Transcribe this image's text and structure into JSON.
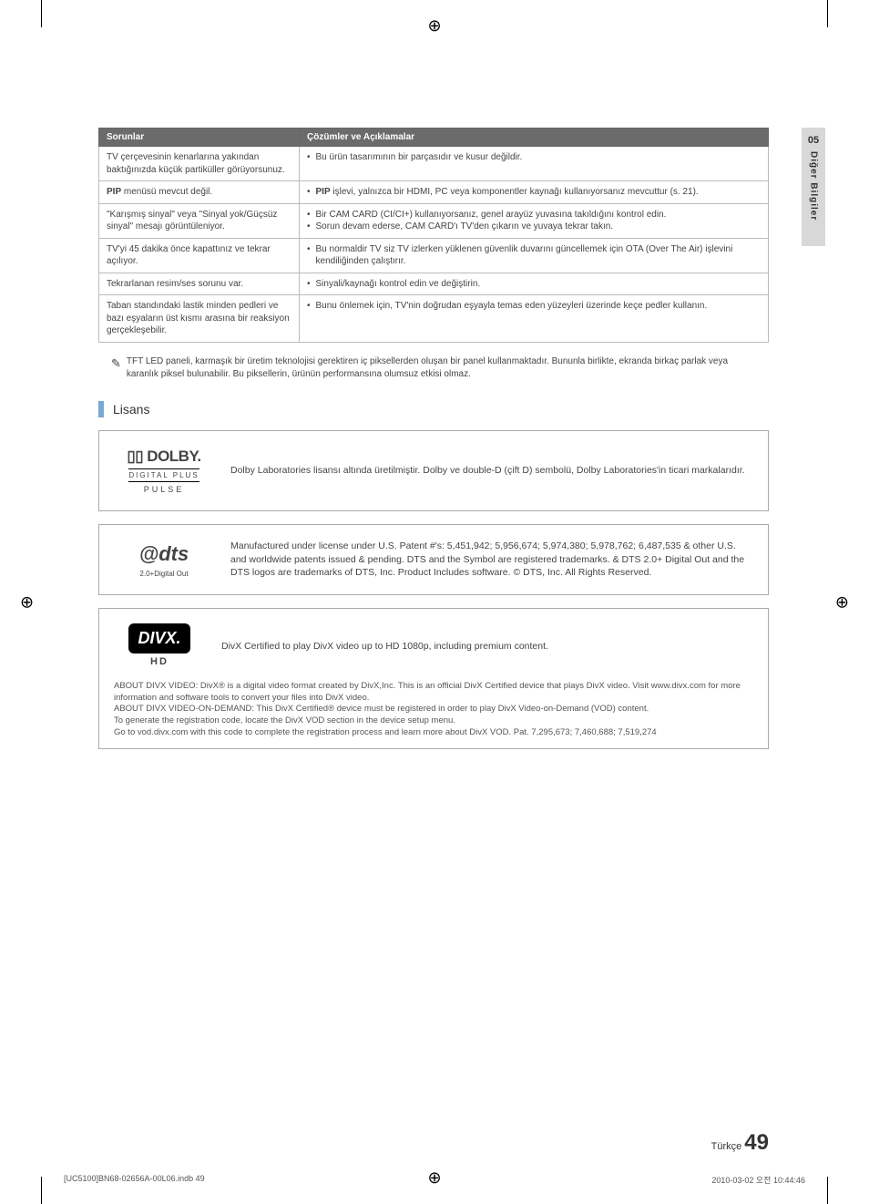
{
  "sidebar": {
    "section_number": "05",
    "section_title": "Diğer Bilgiler"
  },
  "table": {
    "header_problem": "Sorunlar",
    "header_solution": "Çözümler ve Açıklamalar",
    "rows": [
      {
        "problem": "TV çerçevesinin kenarlarına yakından baktığınızda küçük partiküller görüyorsunuz.",
        "solutions": [
          "Bu ürün tasarımının bir parçasıdır ve kusur değildir."
        ]
      },
      {
        "problem_html": "<b>PIP</b> menüsü mevcut değil.",
        "solutions_html": [
          "<b>PIP</b> işlevi, yalnızca bir HDMI, PC veya komponentler kaynağı kullanıyorsanız mevcuttur (s. 21)."
        ]
      },
      {
        "problem": "\"Karışmış sinyal\" veya \"Sinyal yok/Güçsüz sinyal\" mesajı görüntüleniyor.",
        "solutions": [
          "Bir CAM CARD (CI/CI+) kullanıyorsanız, genel arayüz yuvasına takıldığını kontrol edin.",
          "Sorun devam ederse, CAM CARD'ı TV'den çıkarın ve yuvaya tekrar takın."
        ]
      },
      {
        "problem": "TV'yi 45 dakika önce kapattınız ve tekrar açılıyor.",
        "solutions": [
          "Bu normaldir TV siz TV izlerken yüklenen güvenlik duvarını güncellemek için OTA (Over The Air) işlevini kendiliğinden çalıştırır."
        ]
      },
      {
        "problem": "Tekrarlanan resim/ses sorunu var.",
        "solutions": [
          "Sinyali/kaynağı kontrol edin ve değiştirin."
        ]
      },
      {
        "problem": "Taban standındaki lastik minden pedleri ve bazı eşyaların üst kısmı arasına bir reaksiyon gerçekleşebilir.",
        "solutions": [
          "Bunu önlemek için, TV'nin doğrudan eşyayla temas eden yüzeyleri üzerinde keçe pedler kullanın."
        ]
      }
    ]
  },
  "note": "TFT LED paneli, karmaşık bir üretim teknolojisi gerektiren iç piksellerden oluşan bir panel kullanmaktadır. Bununla birlikte, ekranda birkaç parlak veya karanlık piksel bulunabilir. Bu piksellerin, ürünün performansına olumsuz etkisi olmaz.",
  "license_section": {
    "title": "Lisans"
  },
  "dolby": {
    "logo_main": "▯▯ DOLBY.",
    "logo_sub": "DIGITAL PLUS",
    "logo_sub2": "PULSE",
    "text": "Dolby Laboratories lisansı altında üretilmiştir. Dolby ve double-D (çift D) sembolü, Dolby Laboratories'in ticari markalarıdır."
  },
  "dts": {
    "logo_main": "@dts",
    "logo_sub": "2.0+Digital Out",
    "text": "Manufactured under license under U.S. Patent #'s: 5,451,942; 5,956,674; 5,974,380; 5,978,762; 6,487,535 & other U.S. and worldwide patents issued & pending. DTS and the Symbol are registered trademarks. & DTS 2.0+ Digital Out and the DTS logos are trademarks of DTS, Inc. Product Includes software. © DTS, Inc. All Rights Reserved."
  },
  "divx": {
    "logo_main": "DIVX.",
    "logo_sub": "HD",
    "text": "DivX Certified to play DivX video up to HD 1080p, including premium content.",
    "footnote": "ABOUT DIVX VIDEO: DivX® is a digital video format created by DivX,Inc. This is an official DivX Certified device that plays DivX video. Visit www.divx.com for more information and software tools to convert your files into DivX video.\nABOUT DIVX VIDEO-ON-DEMAND: This DivX Certified® device must be registered in order to play DivX Video-on-Demand (VOD) content.\nTo generate the registration code, locate the DivX VOD section in the device setup menu.\nGo to vod.divx.com with this code to complete the registration process and learn more about DivX VOD. Pat. 7,295,673; 7,460,688; 7,519,274"
  },
  "footer": {
    "lang": "Türkçe",
    "page": "49"
  },
  "print_footer": {
    "left": "[UC5100]BN68-02656A-00L06.indb   49",
    "right": "2010-03-02   오전 10:44:46"
  }
}
